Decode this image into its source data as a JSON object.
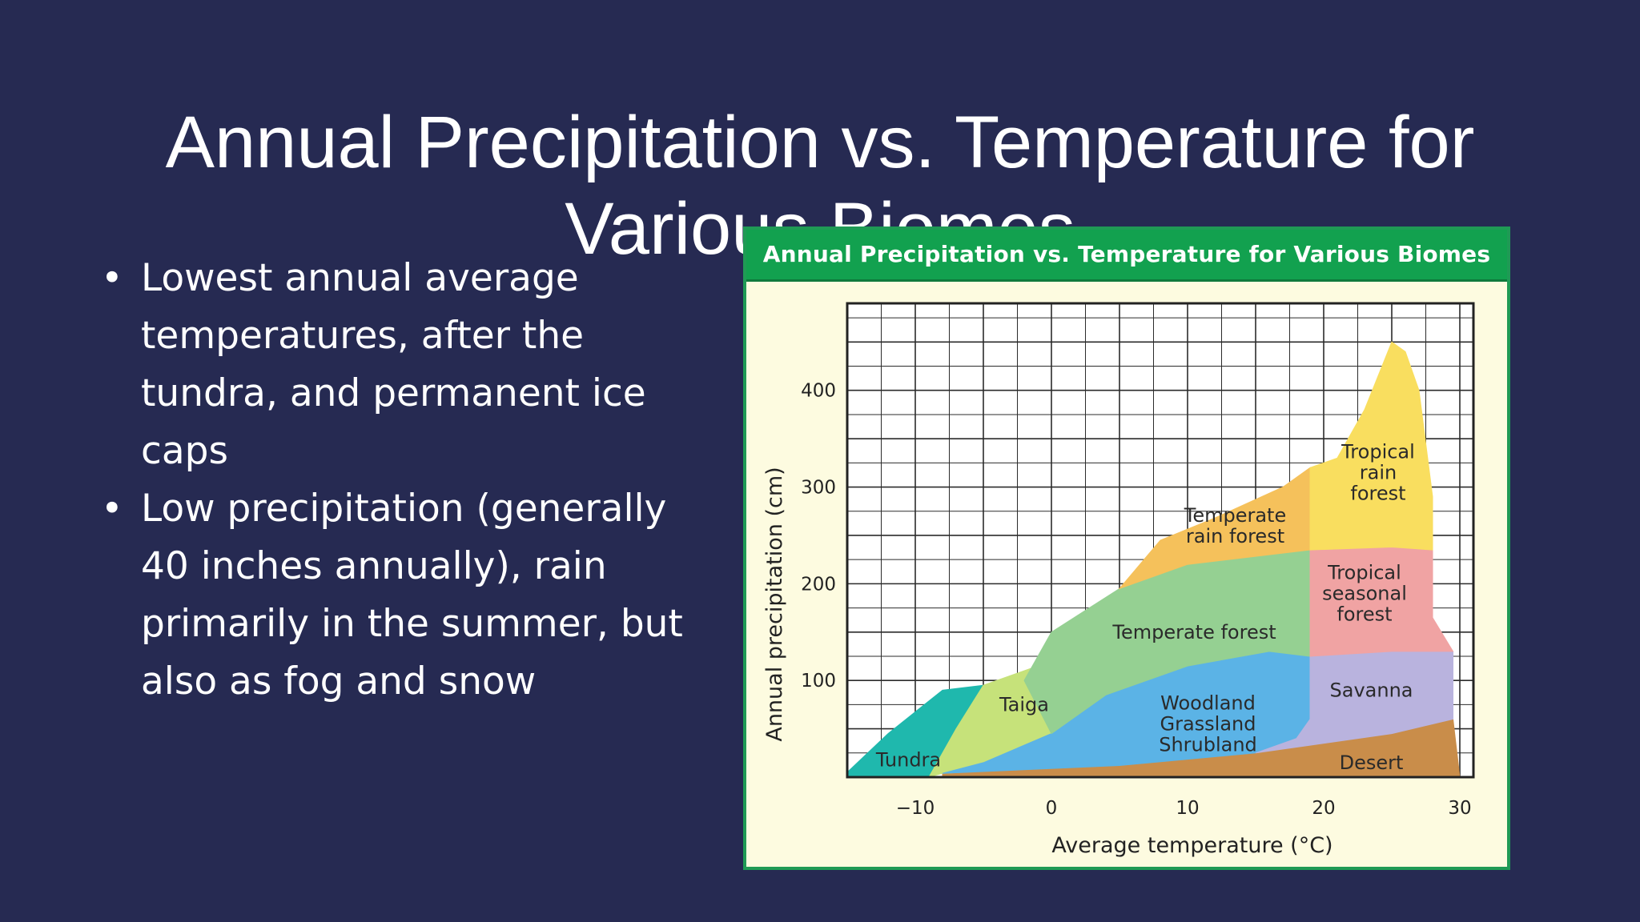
{
  "slide": {
    "title_line1": "Annual Precipitation vs. Temperature for",
    "title_line2": "Various Biomes",
    "bullets": [
      "Lowest annual average temperatures, after the tundra, and permanent ice caps",
      "Low precipitation (generally 40 inches annually), rain primarily in the summer, but also as fog and snow"
    ]
  },
  "chart_data": {
    "type": "area",
    "title": "Annual Precipitation vs. Temperature for Various Biomes",
    "xlabel": "Average temperature (°C)",
    "ylabel": "Annual precipitation (cm)",
    "xlim": [
      -15,
      31
    ],
    "ylim": [
      0,
      490
    ],
    "x_ticks": [
      {
        "value": -10,
        "label": "−10"
      },
      {
        "value": 0,
        "label": "0"
      },
      {
        "value": 10,
        "label": "10"
      },
      {
        "value": 20,
        "label": "20"
      },
      {
        "value": 30,
        "label": "30"
      }
    ],
    "y_ticks": [
      {
        "value": 100,
        "label": "100"
      },
      {
        "value": 200,
        "label": "200"
      },
      {
        "value": 300,
        "label": "300"
      },
      {
        "value": 400,
        "label": "400"
      }
    ],
    "grid": true,
    "regions": [
      {
        "name": "Desert",
        "label": [
          "Desert"
        ],
        "color": "#c98d4a",
        "label_at": [
          23.5,
          15
        ],
        "polygon": [
          [
            -8,
            0
          ],
          [
            30,
            0
          ],
          [
            29.5,
            60
          ],
          [
            25,
            45
          ],
          [
            15,
            25
          ],
          [
            5,
            12
          ],
          [
            -8,
            4
          ]
        ]
      },
      {
        "name": "Tundra",
        "label": [
          "Tundra"
        ],
        "color": "#1fb8ad",
        "label_at": [
          -10.5,
          18
        ],
        "polygon": [
          [
            -15,
            0
          ],
          [
            -9,
            0
          ],
          [
            -7,
            50
          ],
          [
            -5,
            95
          ],
          [
            -8,
            90
          ],
          [
            -12,
            45
          ],
          [
            -15,
            5
          ]
        ]
      },
      {
        "name": "Taiga",
        "label": [
          "Taiga"
        ],
        "color": "#c6e27a",
        "label_at": [
          -2,
          75
        ],
        "polygon": [
          [
            -9,
            0
          ],
          [
            -8,
            4
          ],
          [
            0,
            10
          ],
          [
            3,
            22
          ],
          [
            3,
            100
          ],
          [
            4,
            148
          ],
          [
            0,
            120
          ],
          [
            -5,
            95
          ],
          [
            -7,
            50
          ]
        ]
      },
      {
        "name": "Woodland Grassland Shrubland",
        "label": [
          "Woodland",
          "Grassland",
          "Shrubland"
        ],
        "color": "#5bb3e6",
        "label_at": [
          11.5,
          55
        ],
        "polygon": [
          [
            -8,
            4
          ],
          [
            5,
            12
          ],
          [
            15,
            25
          ],
          [
            18,
            40
          ],
          [
            19,
            60
          ],
          [
            19,
            125
          ],
          [
            16,
            130
          ],
          [
            10,
            115
          ],
          [
            4,
            85
          ],
          [
            0,
            45
          ],
          [
            -5,
            15
          ]
        ]
      },
      {
        "name": "Temperate forest",
        "label": [
          "Temperate forest"
        ],
        "color": "#95d092",
        "label_at": [
          10.5,
          150
        ],
        "polygon": [
          [
            0,
            45
          ],
          [
            4,
            85
          ],
          [
            10,
            115
          ],
          [
            16,
            130
          ],
          [
            19,
            125
          ],
          [
            19,
            235
          ],
          [
            10,
            220
          ],
          [
            5,
            195
          ],
          [
            0,
            150
          ],
          [
            -2,
            100
          ]
        ]
      },
      {
        "name": "Temperate rain forest",
        "label": [
          "Temperate",
          "rain forest"
        ],
        "color": "#f5c15b",
        "label_at": [
          13.5,
          260
        ],
        "polygon": [
          [
            5,
            195
          ],
          [
            10,
            220
          ],
          [
            19,
            235
          ],
          [
            19,
            320
          ],
          [
            17,
            300
          ],
          [
            12,
            268
          ],
          [
            8,
            245
          ]
        ]
      },
      {
        "name": "Savanna",
        "label": [
          "Savanna"
        ],
        "color": "#b9b3de",
        "label_at": [
          23.5,
          90
        ],
        "polygon": [
          [
            15,
            25
          ],
          [
            25,
            45
          ],
          [
            29.5,
            60
          ],
          [
            29.5,
            130
          ],
          [
            25,
            130
          ],
          [
            19,
            125
          ],
          [
            19,
            60
          ],
          [
            18,
            40
          ]
        ]
      },
      {
        "name": "Tropical seasonal forest",
        "label": [
          "Tropical",
          "seasonal",
          "forest"
        ],
        "color": "#f0a3a3",
        "label_at": [
          23,
          190
        ],
        "polygon": [
          [
            19,
            125
          ],
          [
            25,
            130
          ],
          [
            29.5,
            130
          ],
          [
            28,
            165
          ],
          [
            28,
            235
          ],
          [
            25,
            238
          ],
          [
            19,
            235
          ]
        ]
      },
      {
        "name": "Tropical rain forest",
        "label": [
          "Tropical",
          "rain",
          "forest"
        ],
        "color": "#f9de5f",
        "label_at": [
          24,
          315
        ],
        "polygon": [
          [
            19,
            235
          ],
          [
            25,
            238
          ],
          [
            28,
            235
          ],
          [
            28,
            290
          ],
          [
            27,
            400
          ],
          [
            26,
            440
          ],
          [
            25,
            450
          ],
          [
            23,
            380
          ],
          [
            21,
            330
          ],
          [
            19,
            320
          ]
        ]
      }
    ]
  }
}
